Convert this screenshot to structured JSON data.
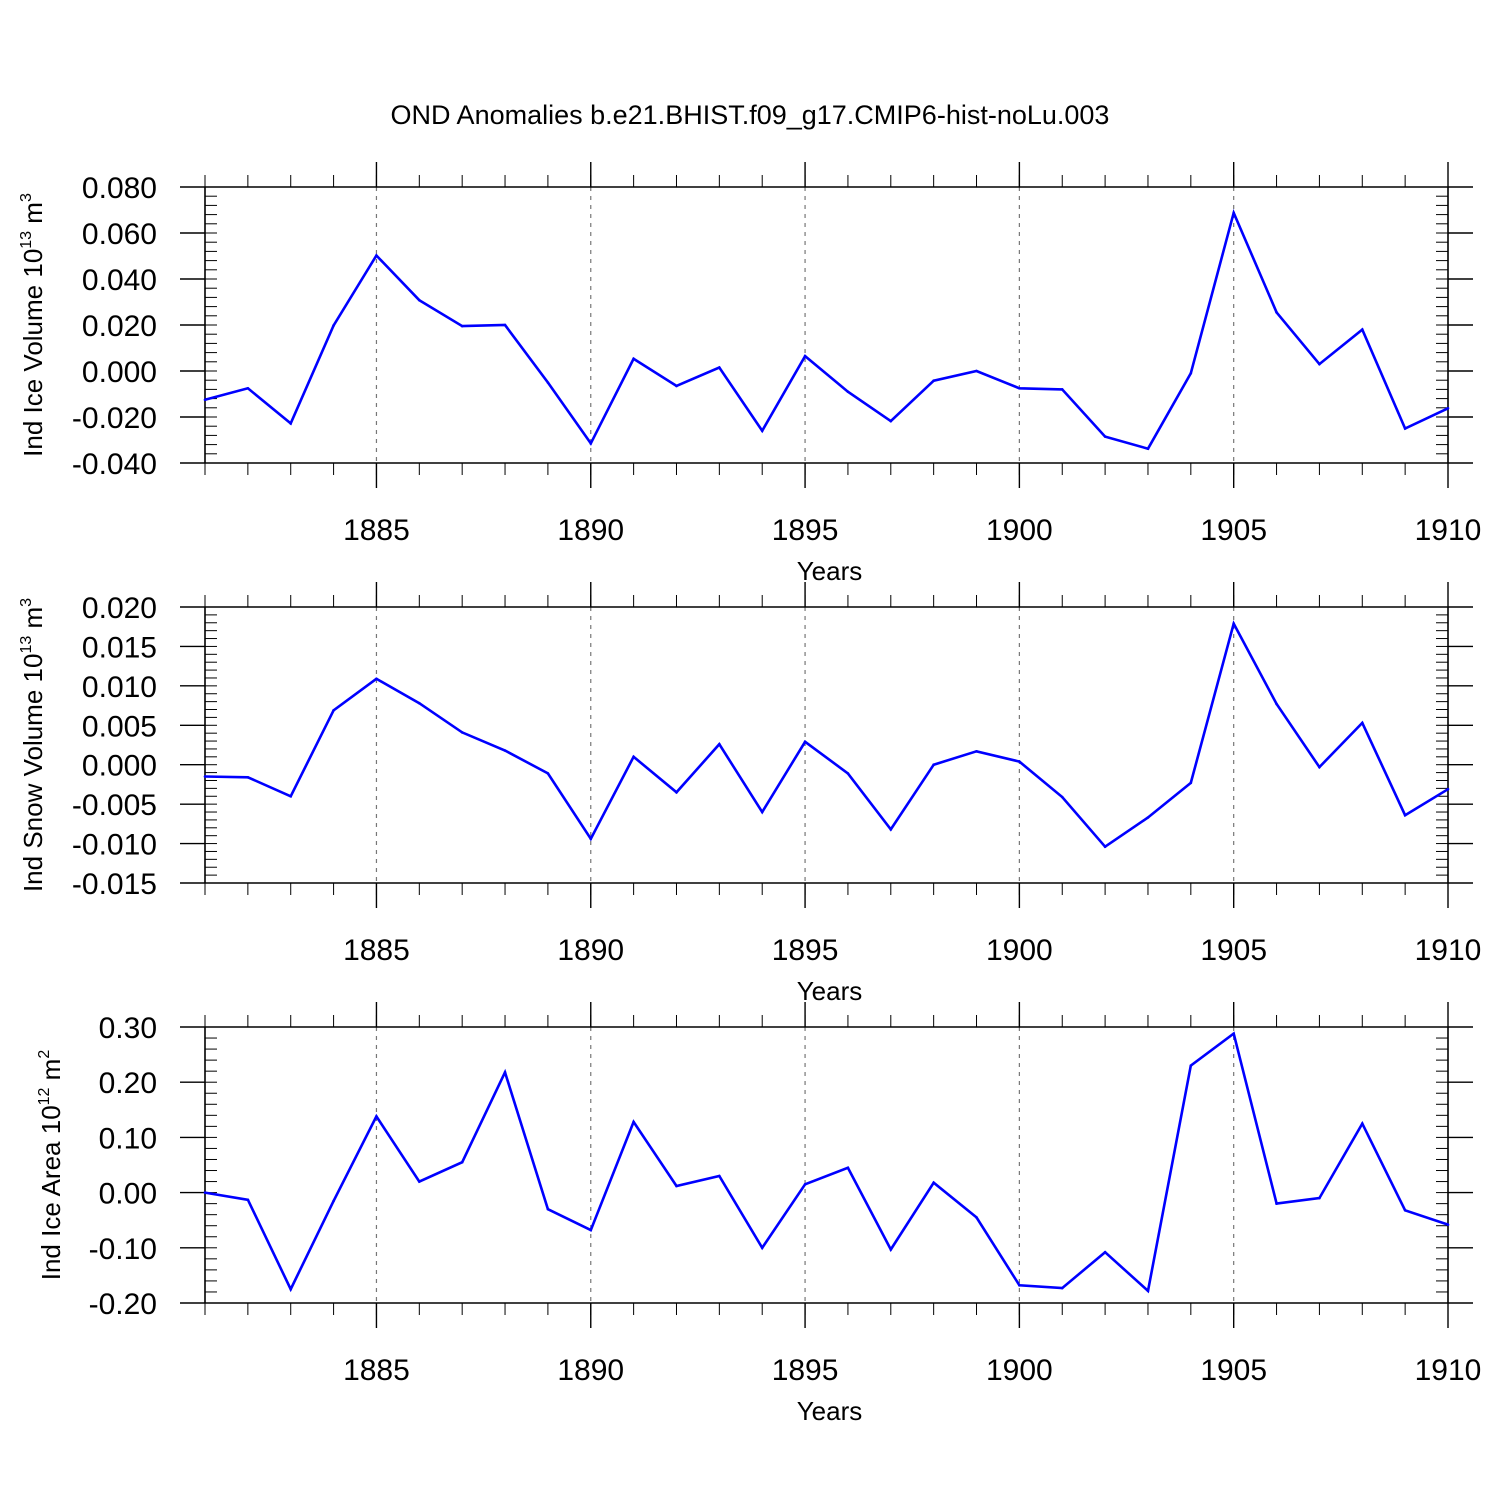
{
  "title": "OND Anomalies b.e21.BHIST.f09_g17.CMIP6-hist-noLu.003",
  "colors": {
    "line": "#0000ff",
    "axis": "#000000",
    "grid": "#777777"
  },
  "chart_data": [
    {
      "type": "line",
      "name": "ice-volume",
      "title": "OND Anomalies b.e21.BHIST.f09_g17.CMIP6-hist-noLu.003",
      "xlabel": "Years",
      "ylabel": {
        "main": "Ind Ice Volume 10",
        "sup": "13",
        "unit": " m",
        "unit_sup": "3"
      },
      "x": [
        1881,
        1882,
        1883,
        1884,
        1885,
        1886,
        1887,
        1888,
        1889,
        1890,
        1891,
        1892,
        1893,
        1894,
        1895,
        1896,
        1897,
        1898,
        1899,
        1900,
        1901,
        1902,
        1903,
        1904,
        1905,
        1906,
        1907,
        1908,
        1909,
        1910
      ],
      "values": [
        -0.0125,
        -0.0075,
        -0.0228,
        0.0198,
        0.0502,
        0.0308,
        0.0195,
        0.02,
        -0.005,
        -0.0315,
        0.0053,
        -0.0065,
        0.0015,
        -0.026,
        0.0065,
        -0.009,
        -0.0218,
        -0.0042,
        0.0,
        -0.0075,
        -0.008,
        -0.0285,
        -0.0338,
        -0.001,
        0.0688,
        0.0255,
        0.003,
        0.018,
        -0.025,
        -0.0162
      ],
      "xlim": [
        1881,
        1910
      ],
      "ylim": [
        -0.04,
        0.08
      ],
      "xticks": [
        "1885",
        "1890",
        "1895",
        "1900",
        "1905",
        "1910"
      ],
      "yticks": [
        "0.080",
        "0.060",
        "0.040",
        "0.020",
        "0.000",
        "-0.020",
        "-0.040"
      ],
      "grid": "dashed vertical at major x ticks"
    },
    {
      "type": "line",
      "name": "snow-volume",
      "xlabel": "Years",
      "ylabel": {
        "main": "Ind Snow Volume 10",
        "sup": "13",
        "unit": " m",
        "unit_sup": "3"
      },
      "x": [
        1881,
        1882,
        1883,
        1884,
        1885,
        1886,
        1887,
        1888,
        1889,
        1890,
        1891,
        1892,
        1893,
        1894,
        1895,
        1896,
        1897,
        1898,
        1899,
        1900,
        1901,
        1902,
        1903,
        1904,
        1905,
        1906,
        1907,
        1908,
        1909,
        1910
      ],
      "values": [
        -0.0015,
        -0.0016,
        -0.004,
        0.0069,
        0.0109,
        0.0078,
        0.0041,
        0.0018,
        -0.0011,
        -0.0094,
        0.001,
        -0.0035,
        0.0026,
        -0.006,
        0.0029,
        -0.0011,
        -0.0082,
        0.0,
        0.0017,
        0.0004,
        -0.0041,
        -0.0104,
        -0.0067,
        -0.0023,
        0.0179,
        0.0077,
        -0.0003,
        0.0053,
        -0.0064,
        -0.0031
      ],
      "xlim": [
        1881,
        1910
      ],
      "ylim": [
        -0.015,
        0.02
      ],
      "xticks": [
        "1885",
        "1890",
        "1895",
        "1900",
        "1905",
        "1910"
      ],
      "yticks": [
        "0.020",
        "0.015",
        "0.010",
        "0.005",
        "0.000",
        "-0.005",
        "-0.010",
        "-0.015"
      ],
      "grid": "dashed vertical at major x ticks"
    },
    {
      "type": "line",
      "name": "ice-area",
      "xlabel": "Years",
      "ylabel": {
        "main": "Ind Ice Area 10",
        "sup": "12",
        "unit": " m",
        "unit_sup": "2"
      },
      "x": [
        1881,
        1882,
        1883,
        1884,
        1885,
        1886,
        1887,
        1888,
        1889,
        1890,
        1891,
        1892,
        1893,
        1894,
        1895,
        1896,
        1897,
        1898,
        1899,
        1900,
        1901,
        1902,
        1903,
        1904,
        1905,
        1906,
        1907,
        1908,
        1909,
        1910
      ],
      "values": [
        0.0,
        -0.013,
        -0.175,
        -0.015,
        0.138,
        0.02,
        0.055,
        0.218,
        -0.03,
        -0.068,
        0.128,
        0.012,
        0.03,
        -0.1,
        0.015,
        0.045,
        -0.103,
        0.018,
        -0.045,
        -0.168,
        -0.173,
        -0.108,
        -0.178,
        0.23,
        0.288,
        -0.02,
        -0.01,
        0.125,
        -0.032,
        -0.058
      ],
      "xlim": [
        1881,
        1910
      ],
      "ylim": [
        -0.2,
        0.3
      ],
      "xticks": [
        "1885",
        "1890",
        "1895",
        "1900",
        "1905",
        "1910"
      ],
      "yticks": [
        "0.30",
        "0.20",
        "0.10",
        "0.00",
        "-0.10",
        "-0.20"
      ],
      "grid": "dashed vertical at major x ticks"
    }
  ]
}
